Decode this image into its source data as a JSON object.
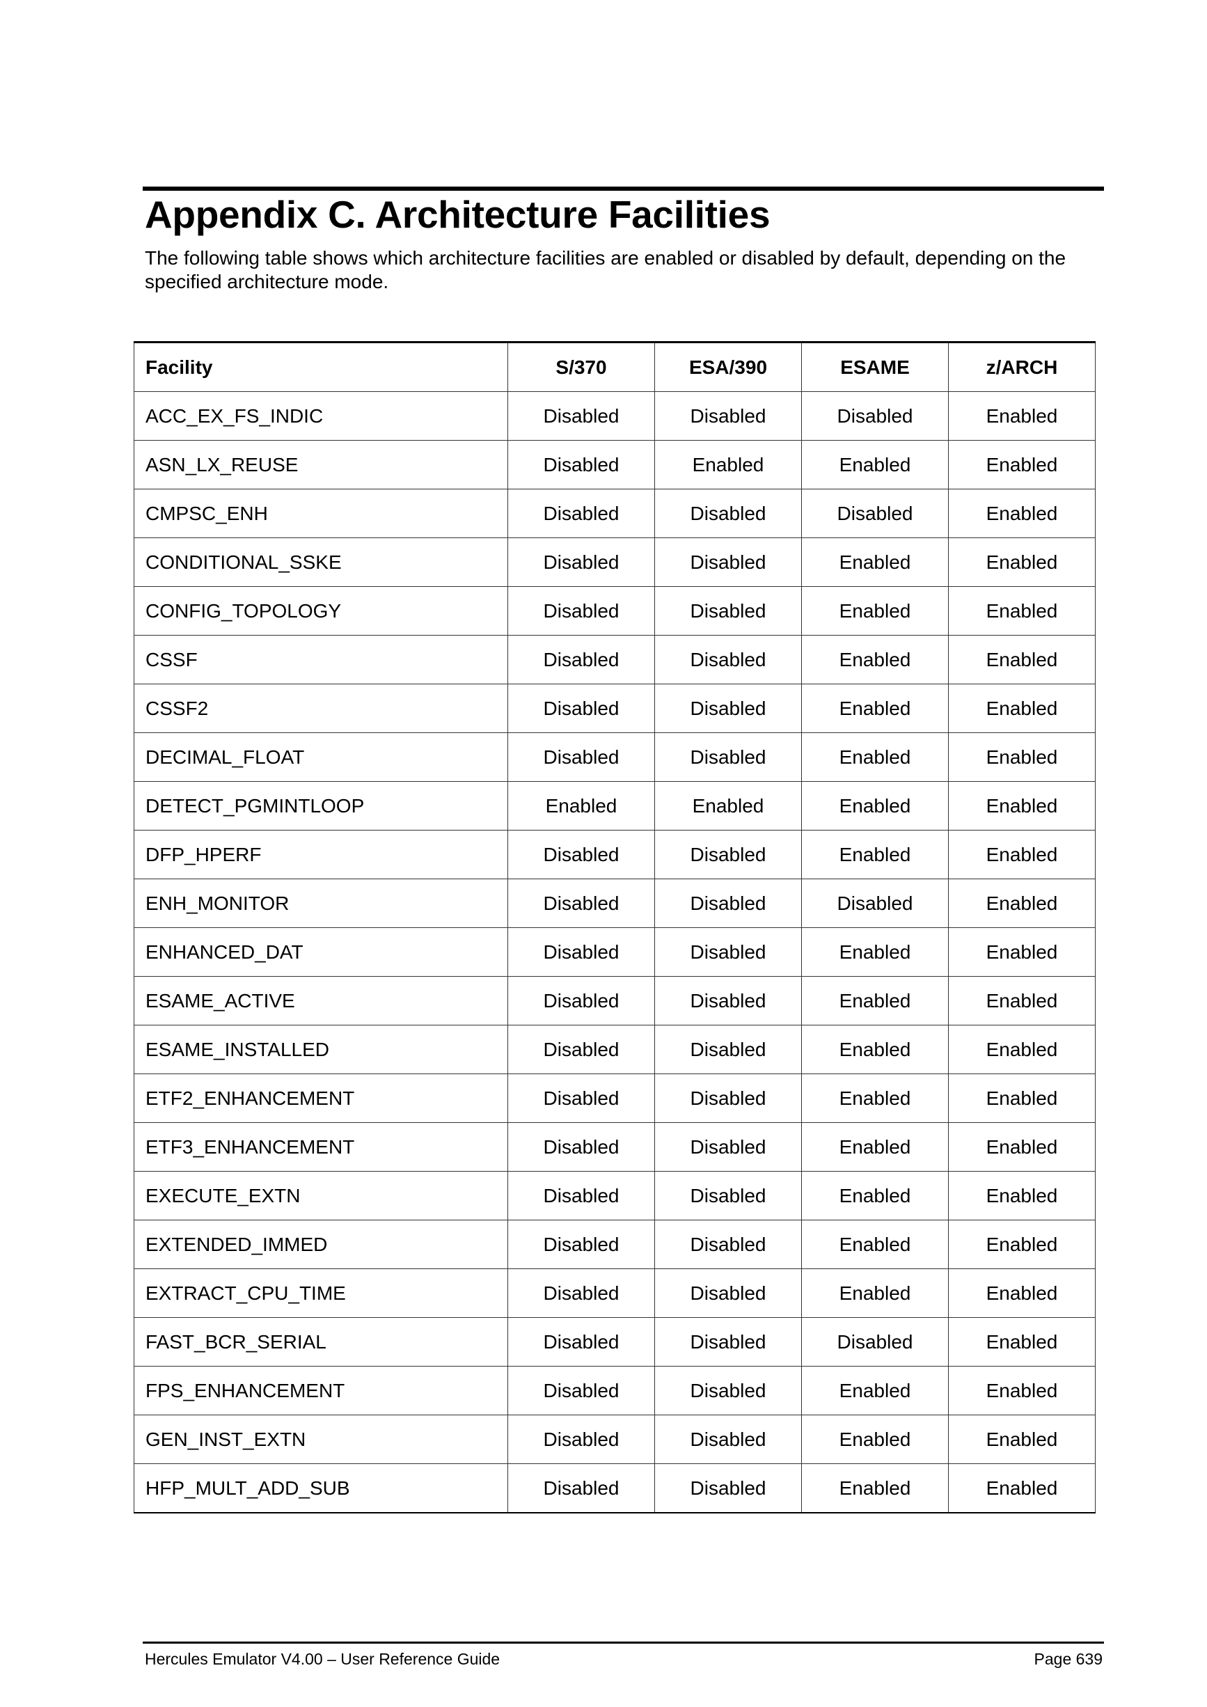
{
  "heading": "Appendix C. Architecture Facilities",
  "intro": "The following table shows which architecture facilities are enabled or disabled by default, depending on the specified architecture mode.",
  "table": {
    "headers": [
      "Facility",
      "S/370",
      "ESA/390",
      "ESAME",
      "z/ARCH"
    ],
    "rows": [
      [
        "ACC_EX_FS_INDIC",
        "Disabled",
        "Disabled",
        "Disabled",
        "Enabled"
      ],
      [
        "ASN_LX_REUSE",
        "Disabled",
        "Enabled",
        "Enabled",
        "Enabled"
      ],
      [
        "CMPSC_ENH",
        "Disabled",
        "Disabled",
        "Disabled",
        "Enabled"
      ],
      [
        "CONDITIONAL_SSKE",
        "Disabled",
        "Disabled",
        "Enabled",
        "Enabled"
      ],
      [
        "CONFIG_TOPOLOGY",
        "Disabled",
        "Disabled",
        "Enabled",
        "Enabled"
      ],
      [
        "CSSF",
        "Disabled",
        "Disabled",
        "Enabled",
        "Enabled"
      ],
      [
        "CSSF2",
        "Disabled",
        "Disabled",
        "Enabled",
        "Enabled"
      ],
      [
        "DECIMAL_FLOAT",
        "Disabled",
        "Disabled",
        "Enabled",
        "Enabled"
      ],
      [
        "DETECT_PGMINTLOOP",
        "Enabled",
        "Enabled",
        "Enabled",
        "Enabled"
      ],
      [
        "DFP_HPERF",
        "Disabled",
        "Disabled",
        "Enabled",
        "Enabled"
      ],
      [
        "ENH_MONITOR",
        "Disabled",
        "Disabled",
        "Disabled",
        "Enabled"
      ],
      [
        "ENHANCED_DAT",
        "Disabled",
        "Disabled",
        "Enabled",
        "Enabled"
      ],
      [
        "ESAME_ACTIVE",
        "Disabled",
        "Disabled",
        "Enabled",
        "Enabled"
      ],
      [
        "ESAME_INSTALLED",
        "Disabled",
        "Disabled",
        "Enabled",
        "Enabled"
      ],
      [
        "ETF2_ENHANCEMENT",
        "Disabled",
        "Disabled",
        "Enabled",
        "Enabled"
      ],
      [
        "ETF3_ENHANCEMENT",
        "Disabled",
        "Disabled",
        "Enabled",
        "Enabled"
      ],
      [
        "EXECUTE_EXTN",
        "Disabled",
        "Disabled",
        "Enabled",
        "Enabled"
      ],
      [
        "EXTENDED_IMMED",
        "Disabled",
        "Disabled",
        "Enabled",
        "Enabled"
      ],
      [
        "EXTRACT_CPU_TIME",
        "Disabled",
        "Disabled",
        "Enabled",
        "Enabled"
      ],
      [
        "FAST_BCR_SERIAL",
        "Disabled",
        "Disabled",
        "Disabled",
        "Enabled"
      ],
      [
        "FPS_ENHANCEMENT",
        "Disabled",
        "Disabled",
        "Enabled",
        "Enabled"
      ],
      [
        "GEN_INST_EXTN",
        "Disabled",
        "Disabled",
        "Enabled",
        "Enabled"
      ],
      [
        "HFP_MULT_ADD_SUB",
        "Disabled",
        "Disabled",
        "Enabled",
        "Enabled"
      ]
    ]
  },
  "footer": {
    "title": "Hercules Emulator V4.00 – User Reference Guide",
    "page": "Page 639"
  }
}
